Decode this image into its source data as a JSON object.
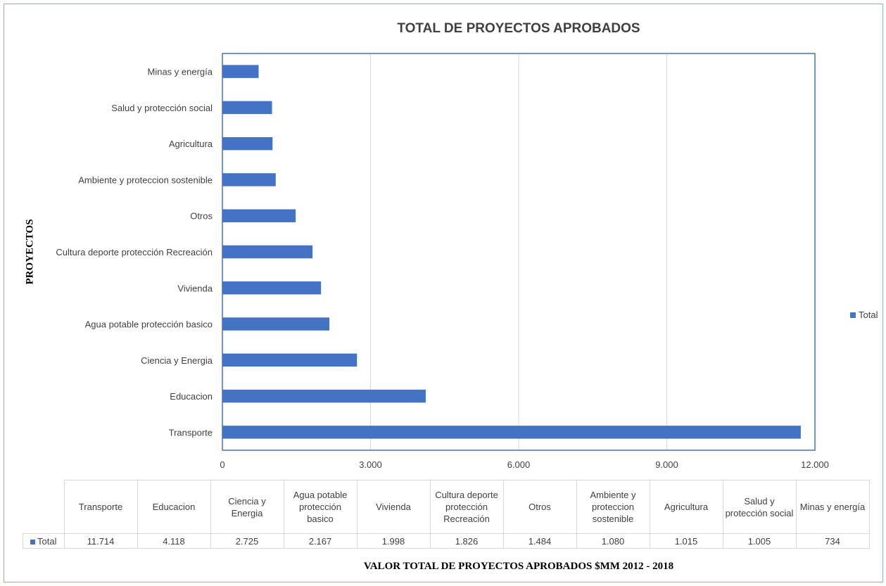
{
  "chart_data": {
    "type": "bar",
    "orientation": "horizontal",
    "title": "TOTAL DE PROYECTOS APROBADOS",
    "xlabel": "VALOR TOTAL DE PROYECTOS APROBADOS $MM 2012 - 2018",
    "ylabel": "PROYECTOS",
    "xlim": [
      0,
      12000
    ],
    "x_ticks": [
      "0",
      "3.000",
      "6.000",
      "9.000",
      "12.000"
    ],
    "grid": "vertical",
    "legend": {
      "position": "right",
      "entries": [
        "Total"
      ]
    },
    "bar_color": "#4472c4",
    "categories": [
      "Transporte",
      "Educacion",
      "Ciencia y Energia",
      "Agua potable protección basico",
      "Vivienda",
      "Cultura deporte protección Recreación",
      "Otros",
      "Ambiente y proteccion sostenible",
      "Agricultura",
      "Salud y protección social",
      "Minas y energía"
    ],
    "series": [
      {
        "name": "Total",
        "values": [
          11714,
          4118,
          2725,
          2167,
          1998,
          1826,
          1484,
          1080,
          1015,
          1005,
          734
        ]
      }
    ],
    "data_table": {
      "row_label": "Total",
      "value_labels": [
        "11.714",
        "4.118",
        "2.725",
        "2.167",
        "1.998",
        "1.826",
        "1.484",
        "1.080",
        "1.015",
        "1.005",
        "734"
      ]
    }
  }
}
